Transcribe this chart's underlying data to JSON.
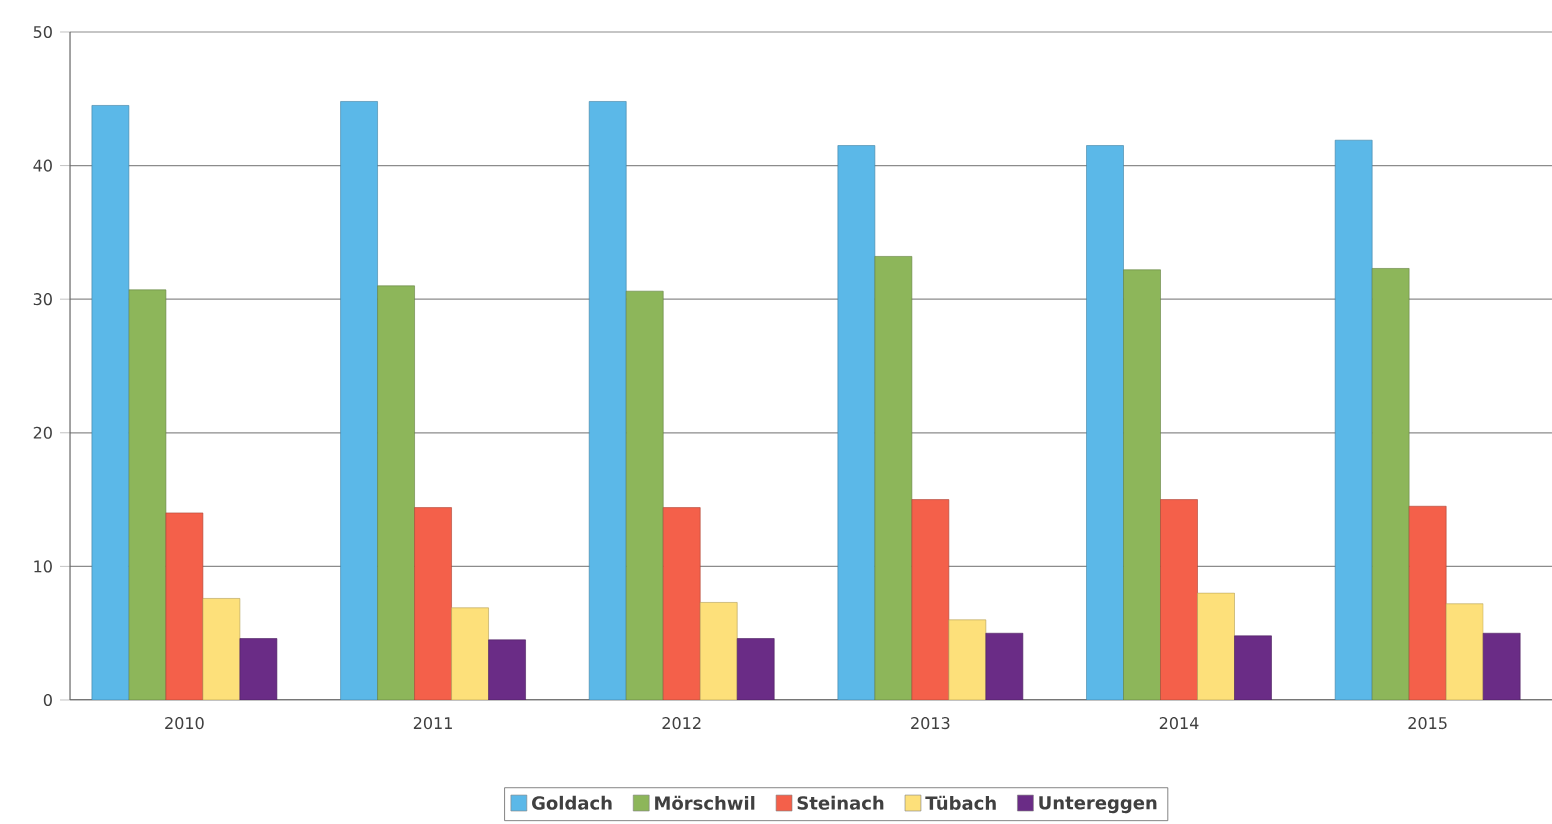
{
  "chart_data": {
    "type": "bar",
    "categories": [
      "2010",
      "2011",
      "2012",
      "2013",
      "2014",
      "2015"
    ],
    "series": [
      {
        "name": "Goldach",
        "color": "#5bb8e8",
        "values": [
          44.5,
          44.8,
          44.8,
          41.5,
          41.5,
          41.9
        ]
      },
      {
        "name": "Mörschwil",
        "color": "#8db65a",
        "values": [
          30.7,
          31.0,
          30.6,
          33.2,
          32.2,
          32.3
        ]
      },
      {
        "name": "Steinach",
        "color": "#f4604a",
        "values": [
          14.0,
          14.4,
          14.4,
          15.0,
          15.0,
          14.5
        ]
      },
      {
        "name": "Tübach",
        "color": "#fde07a",
        "values": [
          7.6,
          6.9,
          7.3,
          6.0,
          8.0,
          7.2
        ]
      },
      {
        "name": "Untereggen",
        "color": "#6a2c86",
        "values": [
          4.6,
          4.5,
          4.6,
          5.0,
          4.8,
          5.0
        ]
      }
    ],
    "ylim": [
      0,
      50
    ],
    "yticks": [
      0,
      10,
      20,
      30,
      40,
      50
    ],
    "grid": "y",
    "legend": "bottom"
  }
}
